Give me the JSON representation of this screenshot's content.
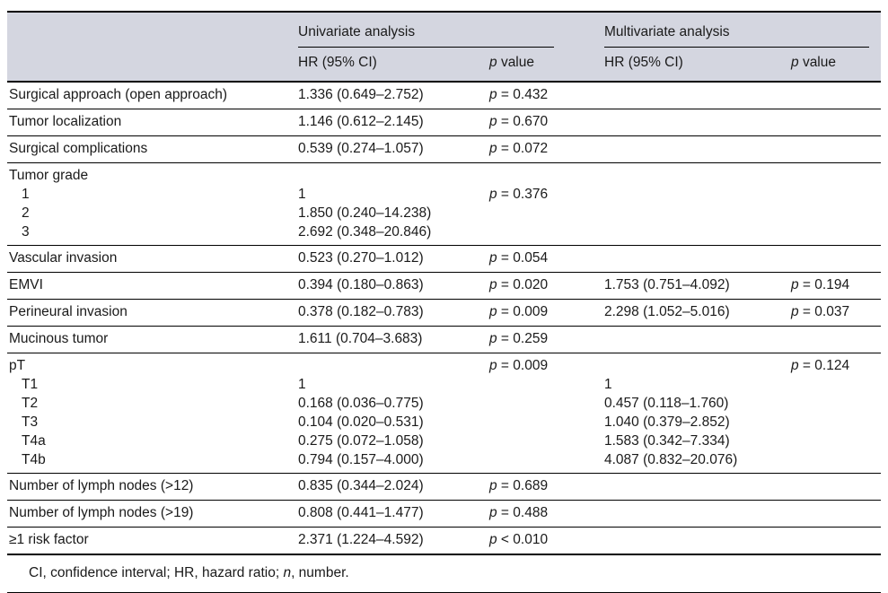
{
  "header": {
    "univariate": "Univariate analysis",
    "multivariate": "Multivariate analysis",
    "hr_ci": "HR (95% CI)",
    "p_symbol": "p",
    "value_word": "value"
  },
  "groups": [
    {
      "id": "surgical-approach",
      "lines": [
        {
          "label": "Surgical approach (open approach)",
          "uni_hr": "1.336 (0.649–2.752)",
          "uni_p": "= 0.432"
        }
      ]
    },
    {
      "id": "tumor-localization",
      "lines": [
        {
          "label": "Tumor localization",
          "uni_hr": "1.146 (0.612–2.145)",
          "uni_p": "= 0.670"
        }
      ]
    },
    {
      "id": "surgical-complications",
      "lines": [
        {
          "label": "Surgical complications",
          "uni_hr": "0.539 (0.274–1.057)",
          "uni_p": "= 0.072"
        }
      ]
    },
    {
      "id": "tumor-grade",
      "lines": [
        {
          "label": "Tumor grade"
        },
        {
          "label": "1",
          "indent": true,
          "uni_hr": "1",
          "uni_p": "= 0.376"
        },
        {
          "label": "2",
          "indent": true,
          "uni_hr": "1.850 (0.240–14.238)"
        },
        {
          "label": "3",
          "indent": true,
          "uni_hr": "2.692 (0.348–20.846)"
        }
      ]
    },
    {
      "id": "vascular-invasion",
      "lines": [
        {
          "label": "Vascular invasion",
          "uni_hr": "0.523 (0.270–1.012)",
          "uni_p": "= 0.054"
        }
      ]
    },
    {
      "id": "emvi",
      "lines": [
        {
          "label": "EMVI",
          "uni_hr": "0.394 (0.180–0.863)",
          "uni_p": "= 0.020",
          "multi_hr": "1.753 (0.751–4.092)",
          "multi_p": "= 0.194"
        }
      ]
    },
    {
      "id": "perineural-invasion",
      "lines": [
        {
          "label": "Perineural invasion",
          "uni_hr": "0.378 (0.182–0.783)",
          "uni_p": "= 0.009",
          "multi_hr": "2.298 (1.052–5.016)",
          "multi_p": "= 0.037"
        }
      ]
    },
    {
      "id": "mucinous-tumor",
      "lines": [
        {
          "label": "Mucinous tumor",
          "uni_hr": "1.611 (0.704–3.683)",
          "uni_p": "= 0.259"
        }
      ]
    },
    {
      "id": "pt-stage",
      "lines": [
        {
          "label": "pT",
          "uni_p": "= 0.009",
          "multi_p": "= 0.124"
        },
        {
          "label": "T1",
          "indent": true,
          "uni_hr": "1",
          "multi_hr": "1"
        },
        {
          "label": "T2",
          "indent": true,
          "uni_hr": "0.168 (0.036–0.775)",
          "multi_hr": "0.457 (0.118–1.760)"
        },
        {
          "label": "T3",
          "indent": true,
          "uni_hr": "0.104 (0.020–0.531)",
          "multi_hr": "1.040 (0.379–2.852)"
        },
        {
          "label": "T4a",
          "indent": true,
          "uni_hr": "0.275 (0.072–1.058)",
          "multi_hr": "1.583 (0.342–7.334)"
        },
        {
          "label": "T4b",
          "indent": true,
          "uni_hr": "0.794 (0.157–4.000)",
          "multi_hr": "4.087 (0.832–20.076)"
        }
      ]
    },
    {
      "id": "lymph-nodes-12",
      "lines": [
        {
          "label": "Number of lymph nodes (>12)",
          "uni_hr": "0.835 (0.344–2.024)",
          "uni_p": "= 0.689"
        }
      ]
    },
    {
      "id": "lymph-nodes-19",
      "lines": [
        {
          "label": "Number of lymph nodes (>19)",
          "uni_hr": "0.808 (0.441–1.477)",
          "uni_p": "= 0.488"
        }
      ]
    },
    {
      "id": "risk-factor",
      "last": true,
      "lines": [
        {
          "label": "≥1 risk factor",
          "uni_hr": "2.371 (1.224–4.592)",
          "uni_p": "< 0.010"
        }
      ]
    }
  ],
  "footnote": {
    "pre": "CI, confidence interval; HR, hazard ratio; ",
    "italic": "n",
    "post": ", number."
  },
  "colors": {
    "header_bg": "#d4d6e0",
    "text": "#1a1a1a",
    "rule": "#000000"
  }
}
